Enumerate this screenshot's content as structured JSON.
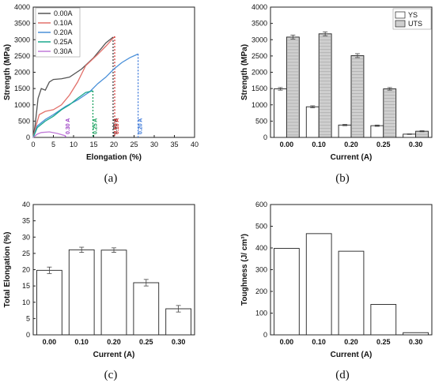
{
  "panels": [
    "(a)",
    "(b)",
    "(c)",
    "(d)"
  ],
  "chart_data": [
    {
      "type": "line",
      "xlabel": "Elongation (%)",
      "ylabel": "Strength (MPa)",
      "xlim": [
        0,
        40
      ],
      "ylim": [
        0,
        4000
      ],
      "xticks": [
        "0",
        "5",
        "10",
        "15",
        "20",
        "25",
        "30",
        "35",
        "40"
      ],
      "yticks": [
        "0",
        "500",
        "1000",
        "1500",
        "2000",
        "2500",
        "3000",
        "3500",
        "4000"
      ],
      "legend_position": "top-left",
      "series": [
        {
          "name": "0.00A",
          "color": "#555555",
          "end_label": "0.00 A",
          "end_label_color": "#333333",
          "x": [
            0,
            0.5,
            1.2,
            2,
            3,
            4,
            5,
            7,
            9,
            12,
            15,
            18,
            19.8
          ],
          "y": [
            0,
            400,
            1200,
            1500,
            1450,
            1700,
            1780,
            1800,
            1850,
            2100,
            2450,
            2900,
            3080
          ]
        },
        {
          "name": "0.10A",
          "color": "#e2706a",
          "end_label": "0.10 A",
          "end_label_color": "#d62828",
          "x": [
            0,
            0.8,
            1.5,
            3,
            5,
            7,
            9,
            11,
            13,
            16,
            18,
            20.2
          ],
          "y": [
            0,
            400,
            700,
            800,
            850,
            1000,
            1300,
            1700,
            2200,
            2550,
            2800,
            3100
          ]
        },
        {
          "name": "0.20A",
          "color": "#4a90d9",
          "end_label": "0.20 A",
          "end_label_color": "#2f6fd6",
          "x": [
            0,
            1,
            3,
            5,
            8,
            11,
            14,
            16,
            18,
            20,
            22,
            24,
            26
          ],
          "y": [
            0,
            350,
            550,
            700,
            950,
            1150,
            1400,
            1650,
            1850,
            2100,
            2300,
            2450,
            2560
          ]
        },
        {
          "name": "0.25A",
          "color": "#1aa88e",
          "end_label": "0.25 A",
          "end_label_color": "#0f9d58",
          "x": [
            0,
            1,
            3,
            5,
            7,
            9,
            11,
            13,
            14.8
          ],
          "y": [
            0,
            300,
            500,
            650,
            850,
            1000,
            1200,
            1380,
            1430
          ]
        },
        {
          "name": "0.30A",
          "color": "#c07ad8",
          "end_label": "0.30 A",
          "end_label_color": "#9b3fc4",
          "x": [
            0,
            1,
            2,
            4,
            6,
            8
          ],
          "y": [
            0,
            100,
            150,
            170,
            120,
            50
          ]
        }
      ]
    },
    {
      "type": "bar",
      "xlabel": "Current (A)",
      "ylabel": "Strength (MPa)",
      "ylim": [
        0,
        4000
      ],
      "yticks": [
        "0",
        "500",
        "1000",
        "1500",
        "2000",
        "2500",
        "3000",
        "3500",
        "4000"
      ],
      "categories": [
        "0.00",
        "0.10",
        "0.20",
        "0.25",
        "0.30"
      ],
      "legend_position": "top-right",
      "series": [
        {
          "name": "YS",
          "values": [
            1490,
            940,
            380,
            360,
            100
          ],
          "errors": [
            40,
            30,
            20,
            20,
            10
          ],
          "fill": "#ffffff"
        },
        {
          "name": "UTS",
          "values": [
            3080,
            3180,
            2510,
            1490,
            190
          ],
          "errors": [
            60,
            60,
            60,
            40,
            15
          ],
          "fill": "#cfcfcf"
        }
      ]
    },
    {
      "type": "bar",
      "xlabel": "Current (A)",
      "ylabel": "Total Elongation (%)",
      "ylim": [
        0,
        40
      ],
      "yticks": [
        "0",
        "5",
        "10",
        "15",
        "20",
        "25",
        "30",
        "35",
        "40"
      ],
      "categories": [
        "0.00",
        "0.10",
        "0.20",
        "0.25",
        "0.30"
      ],
      "values": [
        19.8,
        26.1,
        26.0,
        16.0,
        8.0
      ],
      "errors": [
        1.0,
        0.8,
        0.7,
        1.0,
        1.0
      ]
    },
    {
      "type": "bar",
      "xlabel": "Current (A)",
      "ylabel": "Toughness (J/ cm³)",
      "ylim": [
        0,
        600
      ],
      "yticks": [
        "0",
        "100",
        "200",
        "300",
        "400",
        "500",
        "600"
      ],
      "categories": [
        "0.00",
        "0.10",
        "0.20",
        "0.25",
        "0.30"
      ],
      "values": [
        398,
        466,
        385,
        140,
        10
      ]
    }
  ]
}
